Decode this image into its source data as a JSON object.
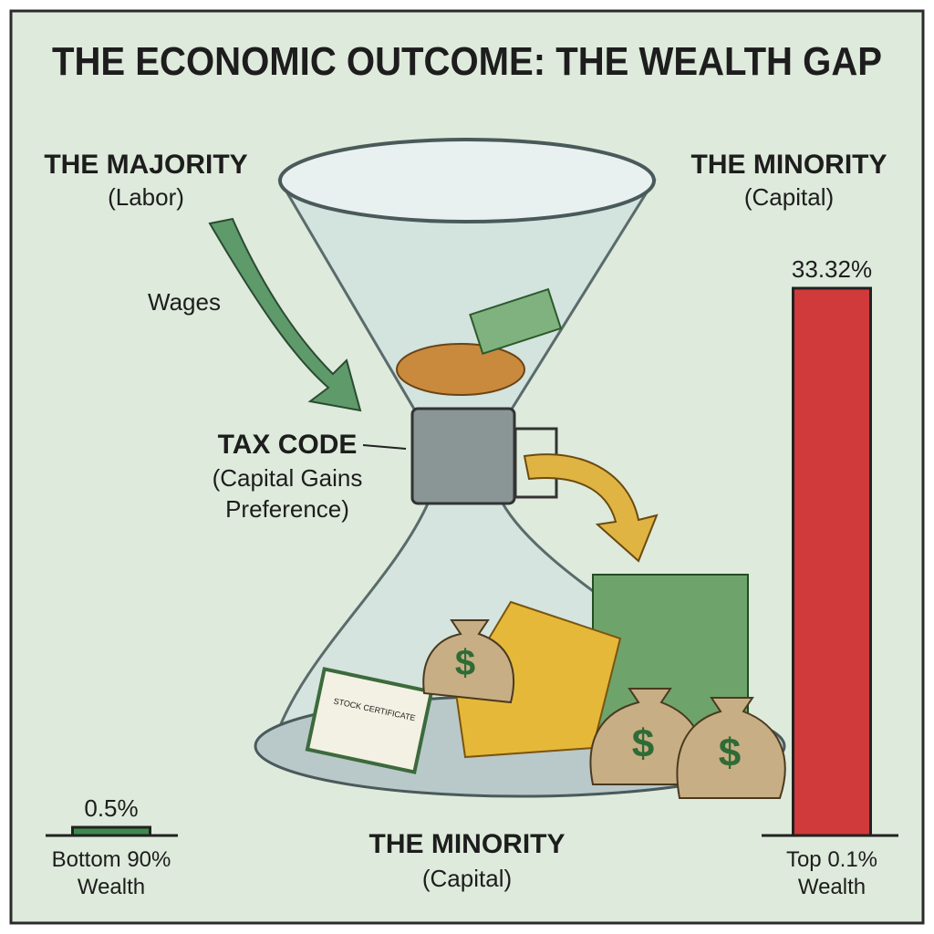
{
  "title": "THE ECONOMIC OUTCOME: THE WEALTH GAP",
  "majority": {
    "heading": "THE MAJORITY",
    "sub": "(Labor)"
  },
  "minority_top": {
    "heading": "THE MINORITY",
    "sub": "(Capital)"
  },
  "wages": "Wages",
  "tax_code": {
    "heading": "TAX CODE",
    "lines": [
      "(Capital Gains",
      "Preference)"
    ]
  },
  "minority_bottom": {
    "heading": "THE MINORITY",
    "sub": "(Capital)"
  },
  "certificate": "STOCK CERTIFICATE",
  "bag_symbol": "$",
  "bars": {
    "values": [
      0.5,
      33.32
    ],
    "value_labels": [
      "0.5%",
      "33.32%"
    ],
    "labels": [
      [
        "Bottom 90%",
        "Wealth"
      ],
      [
        "Top 0.1%",
        "Wealth"
      ]
    ],
    "colors": [
      "#3f8a4f",
      "#d03a3a"
    ]
  }
}
